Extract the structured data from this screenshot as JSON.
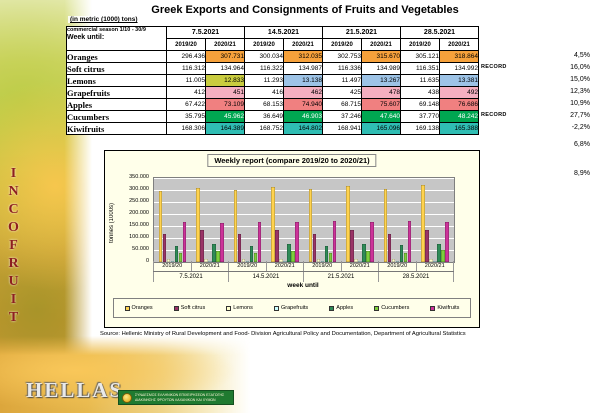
{
  "page": {
    "title": "Greek Exports and Consignments of Fruits and Vegetables",
    "unit_note": "(in metric (1000) tons)"
  },
  "branding": {
    "vertical_name": "INCOFRUIT",
    "bottom_name": "HELLAS",
    "banner_text": "ΣΥΝΔΕΣΜΟΣ ΕΛΛΗΝΙΚΩΝ ΕΠΙΧΕΙΡΗΣΕΩΝ ΕΞΑΓΩΓΗΣ ΔΙΑΚΙΝΗΣΗΣ ΦΡΟΥΤΩΝ ΛΑΧΑΝΙΚΩΝ ΚΑΙ ΧΥΜΩΝ"
  },
  "table": {
    "season_label": "commercial season 1/10 - 30/9",
    "week_label": "Week until:",
    "dates": [
      "7.5.2021",
      "14.5.2021",
      "21.5.2021",
      "28.5.2021"
    ],
    "year_headers": [
      "2019/20",
      "2020/21"
    ],
    "record_label": "RECORD",
    "rows": [
      {
        "product": "Oranges",
        "values": [
          "296.436",
          "307.731",
          "300.034",
          "312.035",
          "302.753",
          "315.670",
          "305.121",
          "318.864"
        ],
        "pct": "4,5%",
        "record": "",
        "cell_bg": [
          "#F6A13B",
          "#F6A13B",
          "#F6A13B",
          "#F6A13B"
        ],
        "cell_text": "#000000"
      },
      {
        "product": "Soft citrus",
        "values": [
          "116.312",
          "134.964",
          "116.322",
          "134.987",
          "116.336",
          "134.989",
          "116.351",
          "134.992"
        ],
        "pct": "16,0%",
        "record": "RECORD",
        "cell_bg": [
          "",
          "",
          "",
          ""
        ],
        "cell_text": "#000000"
      },
      {
        "product": "Lemons",
        "values": [
          "11.005",
          "12.833",
          "11.293",
          "13.138",
          "11.497",
          "13.267",
          "11.635",
          "13.381"
        ],
        "pct": "15,0%",
        "record": "",
        "cell_bg": [
          "#C9CC3F",
          "#9DC3E6",
          "#9DC3E6",
          "#9DC3E6"
        ],
        "cell_text": "#000000"
      },
      {
        "product": "Grapefruits",
        "values": [
          "412",
          "451",
          "416",
          "462",
          "425",
          "478",
          "438",
          "492"
        ],
        "pct": "12,3%",
        "record": "",
        "cell_bg": [
          "#F4AFC0",
          "#F4AFC0",
          "#F4AFC0",
          "#F4AFC0"
        ],
        "cell_text": "#000000"
      },
      {
        "product": "Apples",
        "values": [
          "67.422",
          "73.109",
          "68.153",
          "74.940",
          "68.715",
          "75.607",
          "69.148",
          "76.686"
        ],
        "pct": "10,9%",
        "record": "",
        "cell_bg": [
          "#F08080",
          "#F08080",
          "#F08080",
          "#F08080"
        ],
        "cell_text": "#000000"
      },
      {
        "product": "Cucumbers",
        "values": [
          "35.795",
          "45.962",
          "36.649",
          "46.903",
          "37.246",
          "47.640",
          "37.770",
          "48.242"
        ],
        "pct": "27,7%",
        "record": "RECORD",
        "cell_bg": [
          "#00A651",
          "#00A651",
          "#00A651",
          "#00A651"
        ],
        "cell_text": "#FFFFFF"
      },
      {
        "product": "Kiwifruits",
        "values": [
          "168.306",
          "164.389",
          "168.752",
          "164.802",
          "168.941",
          "165.096",
          "169.138",
          "165.388"
        ],
        "pct": "-2,2%",
        "record": "",
        "cell_bg": [
          "#2FBDB3",
          "#2FBDB3",
          "#2FBDB3",
          "#2FBDB3"
        ],
        "cell_text": "#000000"
      }
    ],
    "extra_percents": [
      "6,8%",
      "8,9%"
    ]
  },
  "chart_data": {
    "type": "bar",
    "title": "Weekly report (compare 2019/20 to 2020/21)",
    "ylabel": "tonnes (1000s)",
    "xlabel": "week until",
    "ymax": 350000,
    "yticks": [
      "0",
      "50.000",
      "100.000",
      "150.000",
      "200.000",
      "250.000",
      "300.000",
      "350.000"
    ],
    "group_labels": [
      "7.5.2021",
      "14.5.2021",
      "21.5.2021",
      "28.5.2021"
    ],
    "pair_labels": [
      "2019/20",
      "2020/21"
    ],
    "plot_bg": "#C6C6C6",
    "gridline_color": "#FFFFFF",
    "legend_position": "bottom",
    "grid": true,
    "series": [
      {
        "name": "Oranges",
        "color": "#FFD34F",
        "values": [
          296436,
          307731,
          300034,
          312035,
          302753,
          315670,
          305121,
          318864
        ]
      },
      {
        "name": "Soft citrus",
        "color": "#993366",
        "values": [
          116312,
          134964,
          116322,
          134987,
          116336,
          134989,
          116351,
          134992
        ]
      },
      {
        "name": "Lemons",
        "color": "#FFFFCC",
        "values": [
          11005,
          12833,
          11293,
          13138,
          11497,
          13267,
          11635,
          13381
        ]
      },
      {
        "name": "Grapefruits",
        "color": "#CCFFFF",
        "values": [
          412,
          451,
          416,
          462,
          425,
          478,
          438,
          492
        ]
      },
      {
        "name": "Apples",
        "color": "#2E8B57",
        "values": [
          67422,
          73109,
          68153,
          74940,
          68715,
          75607,
          69148,
          76686
        ]
      },
      {
        "name": "Cucumbers",
        "color": "#7DCE3C",
        "values": [
          35795,
          45962,
          36649,
          46903,
          37246,
          47640,
          37770,
          48242
        ]
      },
      {
        "name": "Kiwifruits",
        "color": "#CC3399",
        "values": [
          168306,
          164389,
          168752,
          164802,
          168941,
          165096,
          169138,
          165388
        ]
      }
    ]
  },
  "footer": {
    "source": "Source: Hellenic Ministry of Rural Development and Food- Division Agricultural Policy and Documentation, Department of Agricultural Statistics"
  }
}
